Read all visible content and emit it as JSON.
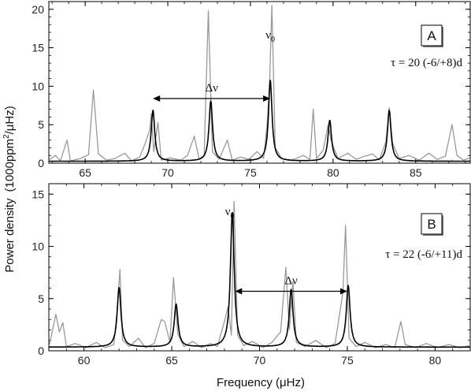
{
  "ylabel_main": "Power density",
  "ylabel_units": "(1000ppm",
  "ylabel_units_sup": "2",
  "ylabel_units_tail": "/μHz)",
  "xlabel": "Frequency (μHz)",
  "chart_data": [
    {
      "type": "line",
      "panel": "A",
      "xlim": [
        62.8,
        88.3
      ],
      "ylim": [
        0,
        21
      ],
      "xticks": [
        65,
        70,
        75,
        80,
        85
      ],
      "yticks": [
        0,
        5,
        10,
        15,
        20
      ],
      "tau_label": "τ = 20 (-6/+8)d",
      "nu0_label": "ν",
      "nu0_sub": "0",
      "delta_nu_label": "Δν",
      "delta_nu_range": [
        69.1,
        76.2
      ],
      "delta_nu_y": 8.4,
      "nu0_position": [
        76.2,
        16.2
      ],
      "series": [
        {
          "color": "#999999",
          "points": [
            [
              62.8,
              0.4
            ],
            [
              63.2,
              1.0
            ],
            [
              63.5,
              0.3
            ],
            [
              63.9,
              3.0
            ],
            [
              64.1,
              0.3
            ],
            [
              64.7,
              0.6
            ],
            [
              65.2,
              1.1
            ],
            [
              65.5,
              9.5
            ],
            [
              65.8,
              1.2
            ],
            [
              66.3,
              0.4
            ],
            [
              66.8,
              0.6
            ],
            [
              67.4,
              1.3
            ],
            [
              67.8,
              0.3
            ],
            [
              68.3,
              0.8
            ],
            [
              68.6,
              2.4
            ],
            [
              68.9,
              4.3
            ],
            [
              69.0,
              6.4
            ],
            [
              69.15,
              1.5
            ],
            [
              69.4,
              5.3
            ],
            [
              69.6,
              0.4
            ],
            [
              70.1,
              0.7
            ],
            [
              70.8,
              0.4
            ],
            [
              71.2,
              1.0
            ],
            [
              71.6,
              3.5
            ],
            [
              71.9,
              0.5
            ],
            [
              72.2,
              1.0
            ],
            [
              72.45,
              19.8
            ],
            [
              72.7,
              1.5
            ],
            [
              73.1,
              0.5
            ],
            [
              73.6,
              3.0
            ],
            [
              73.9,
              0.4
            ],
            [
              74.4,
              0.8
            ],
            [
              74.9,
              0.5
            ],
            [
              75.4,
              1.5
            ],
            [
              75.8,
              0.6
            ],
            [
              76.0,
              4.8
            ],
            [
              76.15,
              9.8
            ],
            [
              76.3,
              20.5
            ],
            [
              76.5,
              2.0
            ],
            [
              76.9,
              0.6
            ],
            [
              77.5,
              0.4
            ],
            [
              78.2,
              1.0
            ],
            [
              78.6,
              0.5
            ],
            [
              78.8,
              7.0
            ],
            [
              79.0,
              0.6
            ],
            [
              79.4,
              1.7
            ],
            [
              79.7,
              5.0
            ],
            [
              79.9,
              2.8
            ],
            [
              80.3,
              0.6
            ],
            [
              80.9,
              1.3
            ],
            [
              81.4,
              0.5
            ],
            [
              81.9,
              0.9
            ],
            [
              82.4,
              1.2
            ],
            [
              82.8,
              0.4
            ],
            [
              83.2,
              2.8
            ],
            [
              83.4,
              7.2
            ],
            [
              83.6,
              2.6
            ],
            [
              84.0,
              0.6
            ],
            [
              84.6,
              1.0
            ],
            [
              85.2,
              0.4
            ],
            [
              85.8,
              1.3
            ],
            [
              86.3,
              0.5
            ],
            [
              86.8,
              0.9
            ],
            [
              87.2,
              5.0
            ],
            [
              87.5,
              1.0
            ],
            [
              87.9,
              0.4
            ],
            [
              88.3,
              0.7
            ]
          ]
        },
        {
          "color": "#000000",
          "peaks": [
            {
              "center": 69.1,
              "height": 6.6
            },
            {
              "center": 72.6,
              "height": 7.8
            },
            {
              "center": 76.2,
              "height": 10.5
            },
            {
              "center": 79.8,
              "height": 5.3
            },
            {
              "center": 83.4,
              "height": 6.6
            }
          ],
          "width": 0.13,
          "baseline": 0.25
        }
      ]
    },
    {
      "type": "line",
      "panel": "B",
      "xlim": [
        58,
        82
      ],
      "ylim": [
        0,
        16
      ],
      "xticks": [
        60,
        65,
        70,
        75,
        80
      ],
      "yticks": [
        0,
        5,
        10,
        15
      ],
      "tau_label": "τ = 22 (-6/+11)d",
      "nu0_label": "ν",
      "nu0_sub": "0",
      "delta_nu_label": "Δν",
      "delta_nu_range": [
        68.6,
        75.0
      ],
      "delta_nu_y": 5.7,
      "nu0_position": [
        68.3,
        13.0
      ],
      "series": [
        {
          "color": "#999999",
          "points": [
            [
              58.0,
              0.3
            ],
            [
              58.4,
              3.5
            ],
            [
              58.6,
              1.8
            ],
            [
              58.8,
              2.7
            ],
            [
              59.0,
              0.4
            ],
            [
              59.5,
              0.7
            ],
            [
              60.1,
              0.3
            ],
            [
              60.7,
              0.8
            ],
            [
              61.2,
              0.3
            ],
            [
              61.7,
              0.6
            ],
            [
              61.9,
              4.0
            ],
            [
              62.05,
              7.8
            ],
            [
              62.2,
              1.0
            ],
            [
              62.6,
              0.4
            ],
            [
              63.1,
              1.2
            ],
            [
              63.5,
              0.3
            ],
            [
              64.0,
              0.7
            ],
            [
              64.4,
              3.0
            ],
            [
              64.6,
              2.8
            ],
            [
              64.9,
              0.8
            ],
            [
              65.1,
              7.0
            ],
            [
              65.35,
              1.6
            ],
            [
              65.7,
              0.4
            ],
            [
              66.2,
              0.9
            ],
            [
              66.7,
              0.3
            ],
            [
              67.2,
              0.7
            ],
            [
              67.6,
              0.4
            ],
            [
              68.0,
              2.8
            ],
            [
              68.2,
              4.2
            ],
            [
              68.4,
              1.5
            ],
            [
              68.55,
              14.3
            ],
            [
              68.75,
              1.5
            ],
            [
              69.1,
              0.5
            ],
            [
              69.6,
              0.9
            ],
            [
              70.2,
              0.3
            ],
            [
              70.7,
              0.8
            ],
            [
              71.2,
              1.8
            ],
            [
              71.5,
              8.0
            ],
            [
              71.7,
              2.0
            ],
            [
              71.9,
              6.6
            ],
            [
              72.1,
              0.8
            ],
            [
              72.6,
              0.4
            ],
            [
              73.2,
              1.0
            ],
            [
              73.8,
              0.3
            ],
            [
              74.3,
              0.7
            ],
            [
              74.75,
              5.6
            ],
            [
              74.9,
              12.0
            ],
            [
              75.1,
              1.2
            ],
            [
              75.5,
              0.4
            ],
            [
              76.0,
              0.8
            ],
            [
              76.6,
              0.3
            ],
            [
              77.2,
              0.6
            ],
            [
              77.7,
              0.3
            ],
            [
              78.05,
              2.8
            ],
            [
              78.3,
              0.6
            ],
            [
              78.9,
              0.3
            ],
            [
              79.5,
              0.7
            ],
            [
              80.1,
              0.3
            ],
            [
              80.8,
              0.6
            ],
            [
              81.4,
              0.3
            ],
            [
              82.0,
              0.5
            ]
          ]
        },
        {
          "color": "#000000",
          "peaks": [
            {
              "center": 62.0,
              "height": 5.7
            },
            {
              "center": 65.25,
              "height": 4.1
            },
            {
              "center": 68.45,
              "height": 12.9
            },
            {
              "center": 71.8,
              "height": 5.5
            },
            {
              "center": 75.05,
              "height": 5.9
            }
          ],
          "width": 0.13,
          "baseline": 0.35
        }
      ]
    }
  ]
}
